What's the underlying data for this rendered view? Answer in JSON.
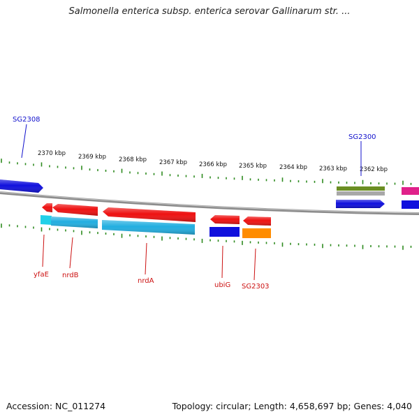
{
  "title": "Salmonella enterica subsp. enterica serovar Gallinarum str. ...",
  "footer": {
    "accession": "Accession: NC_011274",
    "topology": "Topology: circular; Length: 4,658,697 bp; Genes: 4,040"
  },
  "colors": {
    "tick": "#2e8b1f",
    "backbone": "#8c8c8c",
    "label_forward": "#1010cc",
    "label_reverse": "#cc1010"
  },
  "kbp_labels": [
    "2370 kbp",
    "2369 kbp",
    "2368 kbp",
    "2367 kbp",
    "2366 kbp",
    "2365 kbp",
    "2364 kbp",
    "2363 kbp",
    "2362 kbp"
  ],
  "gene_labels": {
    "sg2308": "SG2308",
    "sg2300": "SG2300",
    "yfae": "yfaE",
    "nrdb": "nrdB",
    "nrda": "nrdA",
    "ubig": "ubiG",
    "sg2303": "SG2303"
  },
  "features": [
    {
      "name": "SG2308",
      "strand": "forward",
      "color": "#1010dd"
    },
    {
      "name": "SG2300",
      "strand": "forward",
      "color": "#1010dd"
    },
    {
      "name": "SG2300-annotation-top",
      "strand": "forward",
      "color": "#6b8e23"
    },
    {
      "name": "SG2300-annotation-bottom",
      "strand": "forward",
      "color": "#a8a8a8"
    },
    {
      "name": "magenta-gene",
      "strand": "forward",
      "color": "#e0218a"
    },
    {
      "name": "right-blue-gene",
      "strand": "forward",
      "color": "#1010dd"
    },
    {
      "name": "yfaE",
      "strand": "reverse",
      "color": "#ee1111"
    },
    {
      "name": "yfaE-cds",
      "strand": "reverse",
      "color": "#22d0e8"
    },
    {
      "name": "nrdB",
      "strand": "reverse",
      "color": "#ee1111"
    },
    {
      "name": "nrdB-cds",
      "strand": "reverse",
      "color": "#22aee0"
    },
    {
      "name": "nrdA",
      "strand": "reverse",
      "color": "#ee1111"
    },
    {
      "name": "nrdA-cds",
      "strand": "reverse",
      "color": "#22aee0"
    },
    {
      "name": "ubiG",
      "strand": "reverse",
      "color": "#ee1111"
    },
    {
      "name": "ubiG-cds",
      "strand": "reverse",
      "color": "#1010dd"
    },
    {
      "name": "SG2303",
      "strand": "reverse",
      "color": "#ee1111"
    },
    {
      "name": "SG2303-cds",
      "strand": "reverse",
      "color": "#ff8c00"
    }
  ]
}
